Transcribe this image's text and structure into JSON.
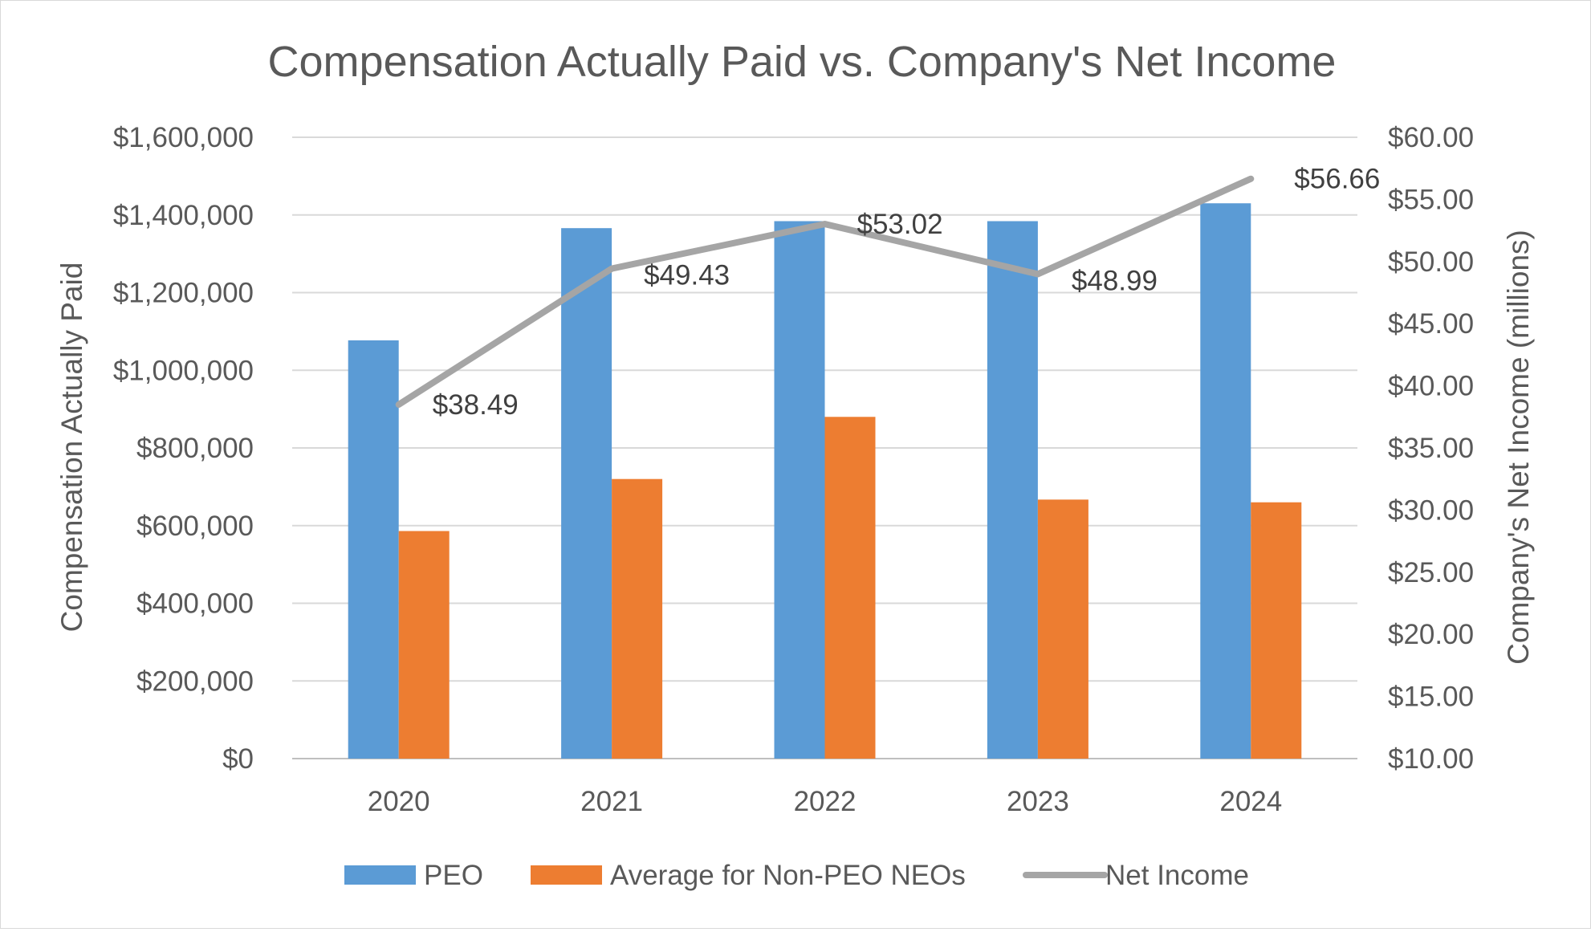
{
  "chart_data": {
    "type": "bar",
    "title": "Compensation Actually Paid vs. Company's Net Income",
    "categories": [
      "2020",
      "2021",
      "2022",
      "2023",
      "2024"
    ],
    "series": [
      {
        "name": "PEO",
        "type": "bar",
        "axis": "left",
        "color": "#5b9bd5",
        "values": [
          1077000,
          1366000,
          1384000,
          1384000,
          1430000
        ]
      },
      {
        "name": "Average for Non-PEO NEOs",
        "type": "bar",
        "axis": "left",
        "color": "#ed7d31",
        "values": [
          586000,
          720000,
          880000,
          667000,
          660000
        ]
      },
      {
        "name": "Net Income",
        "type": "line",
        "axis": "right",
        "color": "#a5a5a5",
        "values": [
          38.49,
          49.43,
          53.02,
          48.99,
          56.66
        ],
        "labels": [
          "$38.49",
          "$49.43",
          "$53.02",
          "$48.99",
          "$56.66"
        ]
      }
    ],
    "y_left": {
      "label": "Compensation Actually Paid",
      "min": 0,
      "max": 1600000,
      "ticks": [
        0,
        200000,
        400000,
        600000,
        800000,
        1000000,
        1200000,
        1400000,
        1600000
      ],
      "tick_labels": [
        "$0",
        "$200,000",
        "$400,000",
        "$600,000",
        "$800,000",
        "$1,000,000",
        "$1,200,000",
        "$1,400,000",
        "$1,600,000"
      ]
    },
    "y_right": {
      "label": "Company's Net Income (millions)",
      "min": 10,
      "max": 60,
      "ticks": [
        10,
        15,
        20,
        25,
        30,
        35,
        40,
        45,
        50,
        55,
        60
      ],
      "tick_labels": [
        "$10.00",
        "$15.00",
        "$20.00",
        "$25.00",
        "$30.00",
        "$35.00",
        "$40.00",
        "$45.00",
        "$50.00",
        "$55.00",
        "$60.00"
      ]
    },
    "grid": true,
    "legend": "bottom"
  }
}
